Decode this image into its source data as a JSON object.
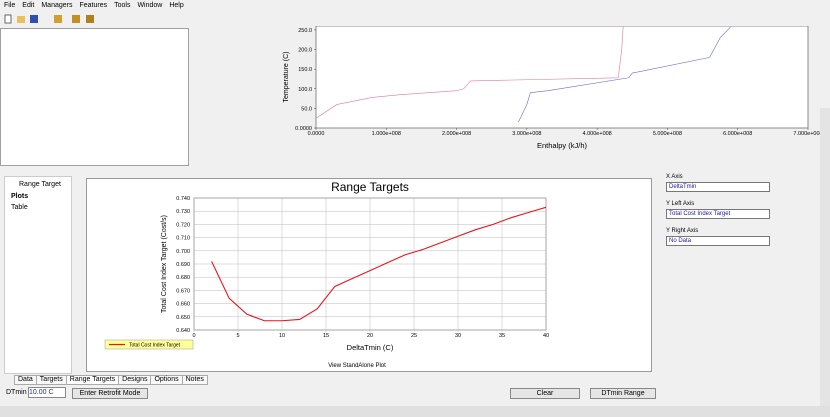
{
  "menu": [
    "File",
    "Edit",
    "Managers",
    "Features",
    "Tools",
    "Window",
    "Help"
  ],
  "composite_plot": {
    "type": "line",
    "x_label": "Enthalpy (kJ/h)",
    "y_label": "Temperature (C)",
    "xlim": [
      0,
      700000000
    ],
    "xticks": [
      {
        "value": 0,
        "label": "0.0000"
      },
      {
        "value": 100000000,
        "label": "1.000e+008"
      },
      {
        "value": 200000000,
        "label": "2.000e+008"
      },
      {
        "value": 300000000,
        "label": "3.000e+008"
      },
      {
        "value": 400000000,
        "label": "4.000e+008"
      },
      {
        "value": 500000000,
        "label": "5.000e+008"
      },
      {
        "value": 600000000,
        "label": "6.000e+008"
      },
      {
        "value": 700000000,
        "label": "7.000e+008"
      }
    ],
    "ylim": [
      0,
      260
    ],
    "yticks": [
      {
        "value": 0,
        "label": "0.0000"
      },
      {
        "value": 50,
        "label": "50.0"
      },
      {
        "value": 100,
        "label": "100.0"
      },
      {
        "value": 150,
        "label": "150.0"
      },
      {
        "value": 200,
        "label": "200.0"
      },
      {
        "value": 250,
        "label": "250.0"
      }
    ],
    "series": [
      {
        "color": "#e07a9a",
        "x": [
          0,
          30000000,
          80000000,
          120000000,
          200000000,
          210000000,
          220000000,
          430000000,
          435000000,
          437000000
        ],
        "values": [
          25,
          60,
          78,
          85,
          95,
          100,
          120,
          128,
          200,
          258
        ]
      },
      {
        "color": "#6a6ad0",
        "x": [
          288000000,
          300000000,
          305000000,
          330000000,
          445000000,
          450000000,
          560000000,
          575000000,
          590000000
        ],
        "values": [
          15,
          60,
          90,
          95,
          128,
          140,
          180,
          230,
          258
        ]
      }
    ]
  },
  "range_plot": {
    "type": "line",
    "title": "Range Targets",
    "x_label": "DeltaTmin (C)",
    "y_label": "Total Cost Index Target (Cost/s)",
    "x": [
      2,
      4,
      6,
      8,
      10,
      12,
      14,
      16,
      18,
      20,
      22,
      24,
      26,
      28,
      30,
      32,
      34,
      36,
      38,
      40
    ],
    "series": [
      {
        "name": "Total Cost Index Target",
        "color": "#e8141e",
        "values": [
          0.692,
          0.664,
          0.652,
          0.647,
          0.647,
          0.648,
          0.656,
          0.673,
          0.679,
          0.685,
          0.691,
          0.697,
          0.701,
          0.706,
          0.711,
          0.716,
          0.72,
          0.725,
          0.729,
          0.733
        ]
      }
    ],
    "xlim": [
      0,
      40
    ],
    "xticks": [
      0,
      5,
      10,
      15,
      20,
      25,
      30,
      35,
      40
    ],
    "ylim": [
      0.64,
      0.74
    ],
    "yticks": [
      {
        "value": 0.64,
        "label": "0.640"
      },
      {
        "value": 0.65,
        "label": "0.650"
      },
      {
        "value": 0.66,
        "label": "0.660"
      },
      {
        "value": 0.67,
        "label": "0.670"
      },
      {
        "value": 0.68,
        "label": "0.680"
      },
      {
        "value": 0.69,
        "label": "0.690"
      },
      {
        "value": 0.7,
        "label": "0.700"
      },
      {
        "value": 0.71,
        "label": "0.710"
      },
      {
        "value": 0.72,
        "label": "0.720"
      },
      {
        "value": 0.73,
        "label": "0.730"
      },
      {
        "value": 0.74,
        "label": "0.740"
      }
    ],
    "grid": true
  },
  "left_panel": {
    "title": "Range Target",
    "items": [
      "Plots",
      "Table"
    ]
  },
  "view_link": "View StandAlone Plot",
  "axis_panel": [
    {
      "label": "X Axis",
      "value": "DeltaTmin"
    },
    {
      "label": "Y Left Axis",
      "value": "Total Cost Index Target"
    },
    {
      "label": "Y Right Axis",
      "value": "No Data"
    }
  ],
  "tabs": [
    "Data",
    "Targets",
    "Range Targets",
    "Designs",
    "Options",
    "Notes"
  ],
  "footer": {
    "dtmin_label": "DTmin",
    "dtmin_value": "10.00 C",
    "retrofit_button": "Enter Retrofit Mode",
    "clear_button": "Clear",
    "range_button": "DTmin Range"
  }
}
